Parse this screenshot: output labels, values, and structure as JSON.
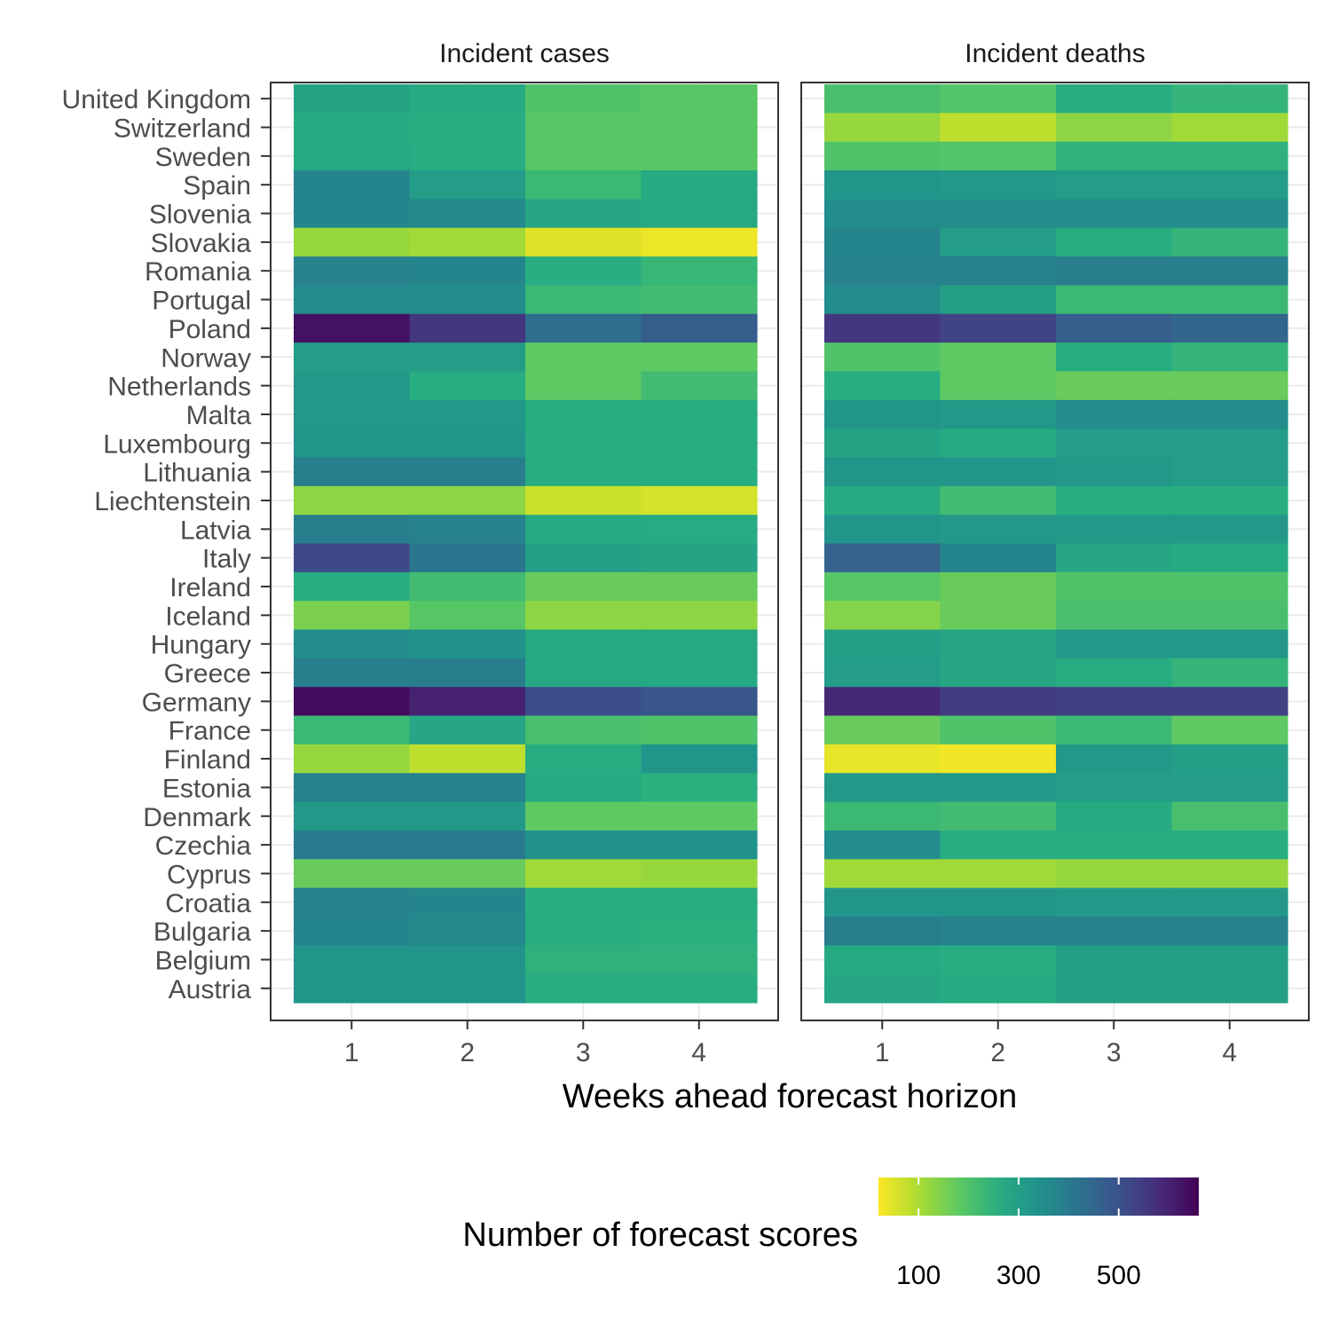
{
  "chart_data": {
    "type": "heatmap",
    "facets": [
      "Incident cases",
      "Incident deaths"
    ],
    "x": [
      1,
      2,
      3,
      4
    ],
    "xlabel": "Weeks ahead forecast horizon",
    "ylabel": "",
    "y": [
      "United Kingdom",
      "Switzerland",
      "Sweden",
      "Spain",
      "Slovenia",
      "Slovakia",
      "Romania",
      "Portugal",
      "Poland",
      "Norway",
      "Netherlands",
      "Malta",
      "Luxembourg",
      "Lithuania",
      "Liechtenstein",
      "Latvia",
      "Italy",
      "Ireland",
      "Iceland",
      "Hungary",
      "Greece",
      "Germany",
      "France",
      "Finland",
      "Estonia",
      "Denmark",
      "Czechia",
      "Cyprus",
      "Croatia",
      "Bulgaria",
      "Belgium",
      "Austria"
    ],
    "values": {
      "Incident cases": [
        [
          290,
          270,
          200,
          190
        ],
        [
          270,
          260,
          190,
          190
        ],
        [
          275,
          260,
          190,
          190
        ],
        [
          370,
          310,
          230,
          270
        ],
        [
          370,
          360,
          280,
          275
        ],
        [
          120,
          110,
          50,
          35
        ],
        [
          380,
          370,
          260,
          235
        ],
        [
          355,
          350,
          230,
          220
        ],
        [
          630,
          560,
          430,
          470
        ],
        [
          310,
          310,
          180,
          180
        ],
        [
          320,
          260,
          180,
          220
        ],
        [
          320,
          320,
          260,
          260
        ],
        [
          330,
          330,
          260,
          260
        ],
        [
          390,
          390,
          260,
          260
        ],
        [
          130,
          130,
          70,
          60
        ],
        [
          390,
          380,
          270,
          265
        ],
        [
          520,
          410,
          300,
          290
        ],
        [
          260,
          220,
          170,
          170
        ],
        [
          150,
          190,
          130,
          130
        ],
        [
          350,
          340,
          275,
          275
        ],
        [
          390,
          390,
          275,
          275
        ],
        [
          640,
          600,
          510,
          490
        ],
        [
          230,
          280,
          210,
          200
        ],
        [
          120,
          80,
          260,
          330
        ],
        [
          380,
          380,
          270,
          255
        ],
        [
          320,
          320,
          180,
          180
        ],
        [
          400,
          400,
          340,
          340
        ],
        [
          170,
          170,
          110,
          120
        ],
        [
          380,
          370,
          260,
          260
        ],
        [
          370,
          360,
          260,
          255
        ],
        [
          330,
          330,
          250,
          250
        ],
        [
          330,
          330,
          260,
          260
        ]
      ],
      "Incident deaths": [
        [
          210,
          195,
          260,
          240
        ],
        [
          120,
          80,
          130,
          110
        ],
        [
          200,
          195,
          250,
          250
        ],
        [
          330,
          320,
          310,
          310
        ],
        [
          350,
          350,
          350,
          350
        ],
        [
          370,
          310,
          260,
          240
        ],
        [
          380,
          380,
          390,
          390
        ],
        [
          350,
          300,
          230,
          230
        ],
        [
          560,
          530,
          470,
          450
        ],
        [
          200,
          180,
          260,
          240
        ],
        [
          260,
          180,
          170,
          170
        ],
        [
          330,
          320,
          350,
          350
        ],
        [
          290,
          270,
          310,
          310
        ],
        [
          330,
          330,
          320,
          310
        ],
        [
          270,
          220,
          260,
          260
        ],
        [
          330,
          320,
          320,
          320
        ],
        [
          460,
          370,
          280,
          270
        ],
        [
          190,
          170,
          200,
          200
        ],
        [
          140,
          170,
          210,
          210
        ],
        [
          300,
          280,
          320,
          320
        ],
        [
          310,
          280,
          260,
          240
        ],
        [
          590,
          550,
          540,
          540
        ],
        [
          170,
          200,
          230,
          180
        ],
        [
          40,
          30,
          320,
          300
        ],
        [
          320,
          320,
          310,
          310
        ],
        [
          230,
          220,
          270,
          210
        ],
        [
          350,
          260,
          260,
          260
        ],
        [
          110,
          110,
          120,
          120
        ],
        [
          330,
          330,
          320,
          320
        ],
        [
          390,
          380,
          380,
          380
        ],
        [
          270,
          260,
          300,
          300
        ],
        [
          280,
          270,
          300,
          300
        ]
      ]
    },
    "legend": {
      "title": "Number of forecast scores",
      "ticks": [
        100,
        300,
        500
      ],
      "range": [
        20,
        660
      ],
      "colormap": "viridis-reversed",
      "placement": "bottom"
    },
    "grid": true
  }
}
